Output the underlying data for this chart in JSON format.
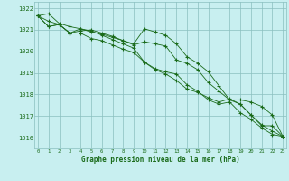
{
  "x": [
    0,
    1,
    2,
    3,
    4,
    5,
    6,
    7,
    8,
    9,
    10,
    11,
    12,
    13,
    14,
    15,
    16,
    17,
    18,
    19,
    20,
    21,
    22,
    23
  ],
  "series1": [
    1021.65,
    1021.75,
    1021.3,
    1021.15,
    1021.05,
    1020.95,
    1020.75,
    1020.55,
    1020.35,
    1020.15,
    1019.5,
    1019.2,
    1019.05,
    1018.95,
    1018.45,
    1018.15,
    1017.75,
    1017.55,
    1017.65,
    1017.15,
    1016.85,
    1016.45,
    1016.15,
    1016.05
  ],
  "series2": [
    1021.65,
    1021.4,
    1021.25,
    1020.85,
    1020.95,
    1021.0,
    1020.85,
    1020.7,
    1020.5,
    1020.3,
    1020.45,
    1020.35,
    1020.25,
    1019.6,
    1019.45,
    1019.15,
    1018.55,
    1018.15,
    1017.75,
    1017.55,
    1017.05,
    1016.6,
    1016.3,
    1016.05
  ],
  "series3": [
    1021.65,
    1021.15,
    1021.25,
    1020.85,
    1021.05,
    1020.9,
    1020.8,
    1020.65,
    1020.5,
    1020.35,
    1021.05,
    1020.9,
    1020.75,
    1020.35,
    1019.75,
    1019.45,
    1019.05,
    1018.4,
    1017.75,
    1017.75,
    1017.65,
    1017.45,
    1017.05,
    1016.05
  ],
  "series4": [
    1021.65,
    1021.15,
    1021.25,
    1020.85,
    1020.85,
    1020.6,
    1020.5,
    1020.3,
    1020.1,
    1019.95,
    1019.5,
    1019.15,
    1018.95,
    1018.65,
    1018.25,
    1018.1,
    1017.85,
    1017.65,
    1017.8,
    1017.55,
    1017.05,
    1016.55,
    1016.55,
    1016.05
  ],
  "line_color": "#1a6b1a",
  "bg_color": "#c8eff0",
  "grid_color": "#8abfbf",
  "xlabel": "Graphe pression niveau de la mer (hPa)",
  "xlabel_color": "#1a6b1a",
  "tick_color": "#1a6b1a",
  "ylim_min": 1015.5,
  "ylim_max": 1022.3,
  "yticks": [
    1016,
    1017,
    1018,
    1019,
    1020,
    1021,
    1022
  ],
  "xticks": [
    0,
    1,
    2,
    3,
    4,
    5,
    6,
    7,
    8,
    9,
    10,
    11,
    12,
    13,
    14,
    15,
    16,
    17,
    18,
    19,
    20,
    21,
    22,
    23
  ]
}
